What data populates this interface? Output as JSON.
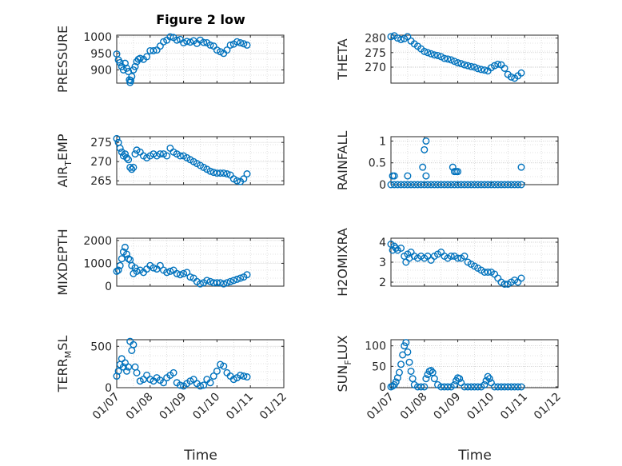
{
  "figure": {
    "title": "Figure 2 low",
    "x_label": "Time",
    "x_tick_labels": [
      "01/07",
      "01/08",
      "01/09",
      "01/10",
      "01/11",
      "01/12"
    ]
  },
  "colors": {
    "marker": "#0072BD",
    "axis": "#262626",
    "grid": "#c8c8c8"
  },
  "chart_data": [
    {
      "type": "scatter",
      "ylabel": "PRESSURE",
      "ylim": [
        860,
        1005
      ],
      "yticks": [
        900,
        950,
        1000
      ],
      "xlim": [
        0,
        4
      ],
      "x": [
        0.0,
        0.05,
        0.1,
        0.15,
        0.2,
        0.25,
        0.3,
        0.35,
        0.38,
        0.4,
        0.42,
        0.45,
        0.5,
        0.55,
        0.6,
        0.65,
        0.7,
        0.8,
        0.9,
        1.0,
        1.1,
        1.2,
        1.3,
        1.4,
        1.5,
        1.6,
        1.7,
        1.8,
        1.9,
        2.0,
        2.1,
        2.2,
        2.3,
        2.4,
        2.5,
        2.6,
        2.7,
        2.8,
        2.9,
        3.0,
        3.1,
        3.2,
        3.3,
        3.4,
        3.5,
        3.6,
        3.7,
        3.8,
        3.9
      ],
      "y": [
        948,
        930,
        922,
        910,
        900,
        920,
        905,
        895,
        870,
        862,
        868,
        880,
        900,
        910,
        925,
        932,
        935,
        932,
        940,
        958,
        958,
        960,
        972,
        985,
        990,
        1000,
        998,
        990,
        992,
        982,
        986,
        984,
        988,
        980,
        990,
        983,
        982,
        975,
        972,
        960,
        955,
        950,
        960,
        975,
        978,
        985,
        982,
        979,
        975
      ]
    },
    {
      "type": "scatter",
      "ylabel": "THETA",
      "ylim": [
        264.5,
        281
      ],
      "yticks": [
        270,
        275,
        280
      ],
      "xlim": [
        0,
        4
      ],
      "x": [
        0.0,
        0.1,
        0.2,
        0.3,
        0.4,
        0.5,
        0.6,
        0.7,
        0.8,
        0.9,
        1.0,
        1.1,
        1.2,
        1.3,
        1.4,
        1.5,
        1.6,
        1.7,
        1.8,
        1.9,
        2.0,
        2.1,
        2.2,
        2.3,
        2.4,
        2.5,
        2.6,
        2.7,
        2.8,
        2.9,
        3.0,
        3.1,
        3.2,
        3.3,
        3.4,
        3.5,
        3.6,
        3.7,
        3.8,
        3.9
      ],
      "y": [
        280.5,
        280.8,
        280.0,
        279.5,
        279.8,
        280.5,
        279.0,
        278.0,
        277.2,
        276.3,
        275.4,
        275.0,
        274.6,
        274.2,
        274.0,
        273.6,
        273.0,
        272.8,
        272.5,
        272.0,
        271.5,
        271.2,
        270.8,
        270.5,
        270.2,
        270.0,
        269.5,
        269.2,
        269.0,
        268.7,
        269.8,
        270.5,
        271.0,
        270.8,
        269.6,
        267.5,
        266.6,
        266.2,
        267.0,
        268.0
      ]
    },
    {
      "type": "scatter",
      "ylabel": "AIR_T_EMP",
      "ylim": [
        264,
        276.5
      ],
      "yticks": [
        265,
        270,
        275
      ],
      "xlim": [
        0,
        4
      ],
      "x": [
        0.0,
        0.05,
        0.1,
        0.15,
        0.2,
        0.25,
        0.3,
        0.35,
        0.4,
        0.45,
        0.5,
        0.55,
        0.6,
        0.7,
        0.8,
        0.9,
        1.0,
        1.1,
        1.2,
        1.3,
        1.4,
        1.5,
        1.6,
        1.7,
        1.8,
        1.9,
        2.0,
        2.1,
        2.2,
        2.3,
        2.4,
        2.5,
        2.6,
        2.7,
        2.8,
        2.9,
        3.0,
        3.1,
        3.2,
        3.3,
        3.4,
        3.5,
        3.6,
        3.7,
        3.8,
        3.9
      ],
      "y": [
        276.0,
        275.0,
        273.5,
        272.5,
        271.5,
        272.0,
        271.0,
        270.5,
        268.5,
        268.0,
        268.5,
        272.0,
        273.0,
        272.5,
        271.5,
        271.0,
        271.5,
        272.0,
        271.5,
        272.0,
        272.0,
        271.5,
        273.5,
        272.5,
        272.0,
        271.5,
        271.5,
        271.0,
        270.5,
        270.0,
        269.5,
        269.0,
        268.5,
        268.0,
        267.5,
        267.2,
        267.0,
        267.0,
        267.0,
        266.8,
        266.5,
        265.5,
        265.0,
        264.8,
        265.5,
        266.8
      ]
    },
    {
      "type": "scatter",
      "ylabel": "RAINFALL",
      "ylim": [
        0,
        1.1
      ],
      "yticks": [
        0,
        0.5,
        1
      ],
      "xlim": [
        0,
        4
      ],
      "x": [
        0.05,
        0.1,
        0.0,
        0.1,
        0.2,
        0.3,
        0.4,
        0.5,
        0.6,
        0.7,
        0.8,
        0.9,
        1.0,
        1.1,
        1.2,
        1.3,
        1.4,
        1.5,
        1.6,
        1.7,
        1.8,
        1.9,
        2.0,
        2.1,
        2.2,
        2.3,
        2.4,
        2.5,
        2.6,
        2.7,
        2.8,
        2.9,
        3.0,
        3.1,
        3.2,
        3.3,
        3.4,
        3.5,
        3.6,
        3.7,
        3.8,
        3.9,
        0.5,
        0.95,
        1.0,
        1.05,
        1.05,
        1.85,
        1.9,
        1.95,
        2.0,
        3.9
      ],
      "y": [
        0.2,
        0.2,
        0,
        0,
        0,
        0,
        0,
        0,
        0,
        0,
        0,
        0,
        0,
        0,
        0,
        0,
        0,
        0,
        0,
        0,
        0,
        0,
        0,
        0,
        0,
        0,
        0,
        0,
        0,
        0,
        0,
        0,
        0,
        0,
        0,
        0,
        0,
        0,
        0,
        0,
        0,
        0,
        0.2,
        0.4,
        0.8,
        1.0,
        0.2,
        0.4,
        0.3,
        0.3,
        0.3,
        0.4
      ]
    },
    {
      "type": "scatter",
      "ylabel": "MIXDEPTH",
      "ylim": [
        0,
        2100
      ],
      "yticks": [
        0,
        1000,
        2000
      ],
      "xlim": [
        0,
        4
      ],
      "x": [
        0.0,
        0.05,
        0.1,
        0.15,
        0.2,
        0.25,
        0.3,
        0.35,
        0.4,
        0.45,
        0.5,
        0.55,
        0.6,
        0.7,
        0.8,
        0.9,
        1.0,
        1.1,
        1.2,
        1.3,
        1.4,
        1.5,
        1.6,
        1.7,
        1.8,
        1.9,
        2.0,
        2.1,
        2.2,
        2.3,
        2.4,
        2.5,
        2.6,
        2.7,
        2.8,
        2.9,
        3.0,
        3.1,
        3.2,
        3.3,
        3.4,
        3.5,
        3.6,
        3.7,
        3.8,
        3.9
      ],
      "y": [
        650,
        700,
        900,
        1200,
        1500,
        1700,
        1400,
        1200,
        1150,
        900,
        550,
        800,
        650,
        700,
        600,
        750,
        900,
        800,
        750,
        900,
        700,
        600,
        650,
        700,
        550,
        500,
        550,
        600,
        400,
        350,
        200,
        100,
        150,
        250,
        200,
        150,
        150,
        150,
        100,
        150,
        200,
        250,
        300,
        350,
        400,
        500
      ]
    },
    {
      "type": "scatter",
      "ylabel": "H2OMIXRA",
      "ylim": [
        1.8,
        4.2
      ],
      "yticks": [
        2,
        3,
        4
      ],
      "xlim": [
        0,
        4
      ],
      "x": [
        0.0,
        0.05,
        0.1,
        0.15,
        0.2,
        0.3,
        0.4,
        0.45,
        0.5,
        0.55,
        0.6,
        0.7,
        0.8,
        0.9,
        1.0,
        1.1,
        1.2,
        1.3,
        1.4,
        1.5,
        1.6,
        1.7,
        1.8,
        1.9,
        2.0,
        2.1,
        2.2,
        2.3,
        2.4,
        2.5,
        2.6,
        2.7,
        2.8,
        2.9,
        3.0,
        3.1,
        3.2,
        3.3,
        3.4,
        3.5,
        3.6,
        3.7,
        3.8,
        3.9
      ],
      "y": [
        3.9,
        3.6,
        3.8,
        3.7,
        3.6,
        3.7,
        3.3,
        3.0,
        3.4,
        3.2,
        3.5,
        3.3,
        3.2,
        3.3,
        3.2,
        3.3,
        3.1,
        3.3,
        3.4,
        3.5,
        3.3,
        3.2,
        3.3,
        3.3,
        3.2,
        3.2,
        3.3,
        3.0,
        2.9,
        2.8,
        2.7,
        2.6,
        2.5,
        2.5,
        2.5,
        2.4,
        2.2,
        2.0,
        1.9,
        1.9,
        2.0,
        2.1,
        2.0,
        2.2
      ]
    },
    {
      "type": "scatter",
      "ylabel": "TERR_M_SL",
      "ylim": [
        0,
        580
      ],
      "yticks": [
        0,
        500
      ],
      "xlim": [
        0,
        4
      ],
      "x": [
        0.0,
        0.05,
        0.1,
        0.15,
        0.2,
        0.25,
        0.3,
        0.35,
        0.4,
        0.45,
        0.5,
        0.55,
        0.6,
        0.7,
        0.8,
        0.9,
        1.0,
        1.1,
        1.2,
        1.3,
        1.4,
        1.5,
        1.6,
        1.7,
        1.8,
        1.9,
        2.0,
        2.1,
        2.2,
        2.3,
        2.4,
        2.5,
        2.6,
        2.7,
        2.8,
        2.9,
        3.0,
        3.1,
        3.2,
        3.3,
        3.4,
        3.5,
        3.6,
        3.7,
        3.8,
        3.9
      ],
      "y": [
        140,
        200,
        280,
        350,
        250,
        300,
        200,
        250,
        560,
        450,
        520,
        250,
        180,
        80,
        100,
        150,
        100,
        80,
        120,
        90,
        60,
        120,
        150,
        180,
        60,
        30,
        20,
        50,
        80,
        100,
        50,
        20,
        30,
        100,
        60,
        140,
        200,
        280,
        260,
        180,
        140,
        100,
        120,
        150,
        140,
        130
      ]
    },
    {
      "type": "scatter",
      "ylabel": "SUN_F_LUX",
      "ylim": [
        -2,
        115
      ],
      "yticks": [
        0,
        50,
        100
      ],
      "xlim": [
        0,
        4
      ],
      "x": [
        0.0,
        0.05,
        0.1,
        0.15,
        0.2,
        0.25,
        0.3,
        0.35,
        0.4,
        0.45,
        0.5,
        0.55,
        0.6,
        0.65,
        0.7,
        0.8,
        0.9,
        1.0,
        1.05,
        1.1,
        1.15,
        1.2,
        1.25,
        1.3,
        1.4,
        1.5,
        1.6,
        1.7,
        1.8,
        1.9,
        1.95,
        2.0,
        2.05,
        2.1,
        2.2,
        2.3,
        2.4,
        2.5,
        2.6,
        2.7,
        2.8,
        2.85,
        2.9,
        2.95,
        3.0,
        3.1,
        3.2,
        3.3,
        3.4,
        3.5,
        3.6,
        3.7,
        3.8,
        3.9
      ],
      "y": [
        0,
        2,
        5,
        12,
        22,
        35,
        55,
        78,
        100,
        108,
        85,
        60,
        38,
        20,
        5,
        0,
        0,
        0,
        20,
        30,
        38,
        40,
        35,
        20,
        5,
        0,
        0,
        0,
        0,
        5,
        15,
        22,
        20,
        10,
        0,
        0,
        0,
        0,
        0,
        0,
        5,
        15,
        25,
        20,
        10,
        0,
        0,
        0,
        0,
        0,
        0,
        0,
        0,
        0
      ]
    }
  ]
}
